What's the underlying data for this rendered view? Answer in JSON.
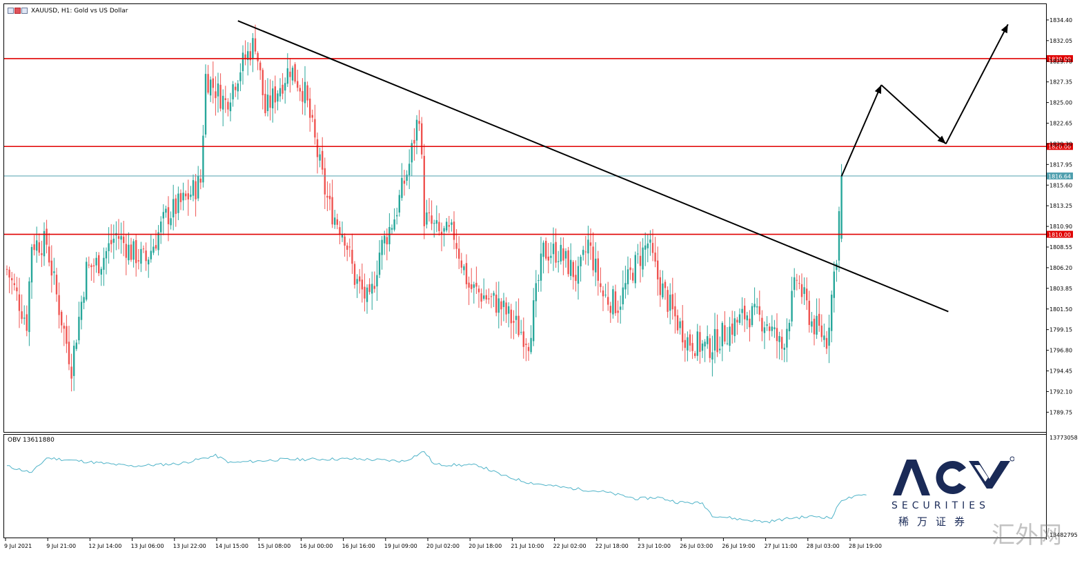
{
  "header": {
    "symbol_text": "XAUUSD, H1:  Gold vs US Dollar"
  },
  "obv": {
    "label": "OBV 13611880",
    "axis_labels": [
      "13773058",
      "13482795"
    ]
  },
  "logo": {
    "brand": "ACY",
    "subtitle": "SECURITIES",
    "chinese": "稀万证券"
  },
  "watermark": "汇外网",
  "colors": {
    "bull": "#26a69a",
    "bear": "#ef5350",
    "level_line": "#e00000",
    "price_line": "#4f9fae",
    "trendline": "#000000",
    "obv_line": "#4fb3c8",
    "logo_blue": "#1a2a57"
  },
  "chart_data": {
    "type": "candlestick",
    "symbol": "XAUUSD",
    "timeframe": "H1",
    "description": "Gold vs US Dollar",
    "ylim": [
      1787.5,
      1836.2
    ],
    "y_ticks": [
      "1834.40",
      "1832.05",
      "1829.70",
      "1827.35",
      "1825.00",
      "1822.65",
      "1820.30",
      "1817.95",
      "1815.60",
      "1813.25",
      "1810.90",
      "1808.55",
      "1806.20",
      "1803.85",
      "1801.50",
      "1799.15",
      "1796.80",
      "1794.45",
      "1792.10",
      "1789.75"
    ],
    "x_ticks": [
      "9 Jul 2021",
      "9 Jul 21:00",
      "12 Jul 14:00",
      "13 Jul 06:00",
      "13 Jul 22:00",
      "14 Jul 15:00",
      "15 Jul 08:00",
      "16 Jul 00:00",
      "16 Jul 16:00",
      "19 Jul 09:00",
      "20 Jul 02:00",
      "20 Jul 18:00",
      "21 Jul 10:00",
      "22 Jul 02:00",
      "22 Jul 18:00",
      "23 Jul 10:00",
      "26 Jul 03:00",
      "26 Jul 19:00",
      "27 Jul 11:00",
      "28 Jul 03:00",
      "28 Jul 19:00"
    ],
    "horizontal_levels": [
      {
        "value": 1830.0,
        "label": "1830.00"
      },
      {
        "value": 1820.0,
        "label": "1820.00"
      },
      {
        "value": 1810.0,
        "label": "1810.00"
      }
    ],
    "current_price": {
      "value": 1816.64,
      "label": "1816.64"
    },
    "anchors": [
      [
        0,
        1806.0
      ],
      [
        8,
        1800.0
      ],
      [
        10,
        1809.0
      ],
      [
        16,
        1809.0
      ],
      [
        20,
        1803.0
      ],
      [
        26,
        1795.0
      ],
      [
        32,
        1806.0
      ],
      [
        38,
        1807.0
      ],
      [
        44,
        1810.0
      ],
      [
        50,
        1808.0
      ],
      [
        56,
        1807.0
      ],
      [
        64,
        1812.0
      ],
      [
        72,
        1814.0
      ],
      [
        78,
        1816.0
      ],
      [
        80,
        1828.0
      ],
      [
        88,
        1825.0
      ],
      [
        94,
        1829.0
      ],
      [
        100,
        1832.0
      ],
      [
        104,
        1824.0
      ],
      [
        108,
        1826.0
      ],
      [
        114,
        1829.0
      ],
      [
        120,
        1826.0
      ],
      [
        128,
        1815.0
      ],
      [
        130,
        1813.0
      ],
      [
        136,
        1810.0
      ],
      [
        140,
        1805.0
      ],
      [
        146,
        1802.0
      ],
      [
        150,
        1808.0
      ],
      [
        156,
        1812.0
      ],
      [
        162,
        1818.0
      ],
      [
        166,
        1824.0
      ],
      [
        168,
        1812.0
      ],
      [
        174,
        1810.0
      ],
      [
        180,
        1810.0
      ],
      [
        186,
        1804.0
      ],
      [
        192,
        1803.0
      ],
      [
        198,
        1802.0
      ],
      [
        204,
        1800.0
      ],
      [
        210,
        1798.0
      ],
      [
        216,
        1808.0
      ],
      [
        222,
        1808.0
      ],
      [
        230,
        1805.0
      ],
      [
        234,
        1809.0
      ],
      [
        240,
        1803.0
      ],
      [
        246,
        1802.0
      ],
      [
        252,
        1806.0
      ],
      [
        258,
        1809.0
      ],
      [
        262,
        1805.0
      ],
      [
        268,
        1801.0
      ],
      [
        274,
        1798.0
      ],
      [
        282,
        1797.0
      ],
      [
        290,
        1799.0
      ],
      [
        298,
        1801.0
      ],
      [
        306,
        1800.0
      ],
      [
        312,
        1797.0
      ],
      [
        318,
        1805.0
      ],
      [
        324,
        1800.0
      ],
      [
        330,
        1798.0
      ],
      [
        334,
        1808.0
      ],
      [
        336,
        1816.6
      ]
    ],
    "projection_path": [
      {
        "x_index": 336,
        "value": 1816.6
      },
      {
        "x_index": 352,
        "value": 1827.0
      },
      {
        "x_index": 378,
        "value": 1820.3
      },
      {
        "x_index": 403,
        "value": 1833.9
      }
    ],
    "trendline": [
      {
        "x_index": 93,
        "value": 1834.3
      },
      {
        "x_index": 379,
        "value": 1801.2
      }
    ],
    "obv": {
      "ylim": [
        13482795,
        13773058
      ],
      "anchors": [
        [
          0,
          13690000
        ],
        [
          10,
          13670000
        ],
        [
          16,
          13715000
        ],
        [
          30,
          13705000
        ],
        [
          50,
          13690000
        ],
        [
          70,
          13698000
        ],
        [
          84,
          13722000
        ],
        [
          90,
          13700000
        ],
        [
          110,
          13710000
        ],
        [
          140,
          13712000
        ],
        [
          160,
          13705000
        ],
        [
          168,
          13735000
        ],
        [
          172,
          13695000
        ],
        [
          190,
          13692000
        ],
        [
          200,
          13660000
        ],
        [
          210,
          13640000
        ],
        [
          224,
          13625000
        ],
        [
          240,
          13612000
        ],
        [
          254,
          13590000
        ],
        [
          262,
          13595000
        ],
        [
          270,
          13580000
        ],
        [
          280,
          13577000
        ],
        [
          284,
          13540000
        ],
        [
          296,
          13527000
        ],
        [
          306,
          13520000
        ],
        [
          316,
          13532000
        ],
        [
          326,
          13537000
        ],
        [
          332,
          13532000
        ],
        [
          336,
          13588000
        ],
        [
          346,
          13603000
        ]
      ]
    }
  }
}
